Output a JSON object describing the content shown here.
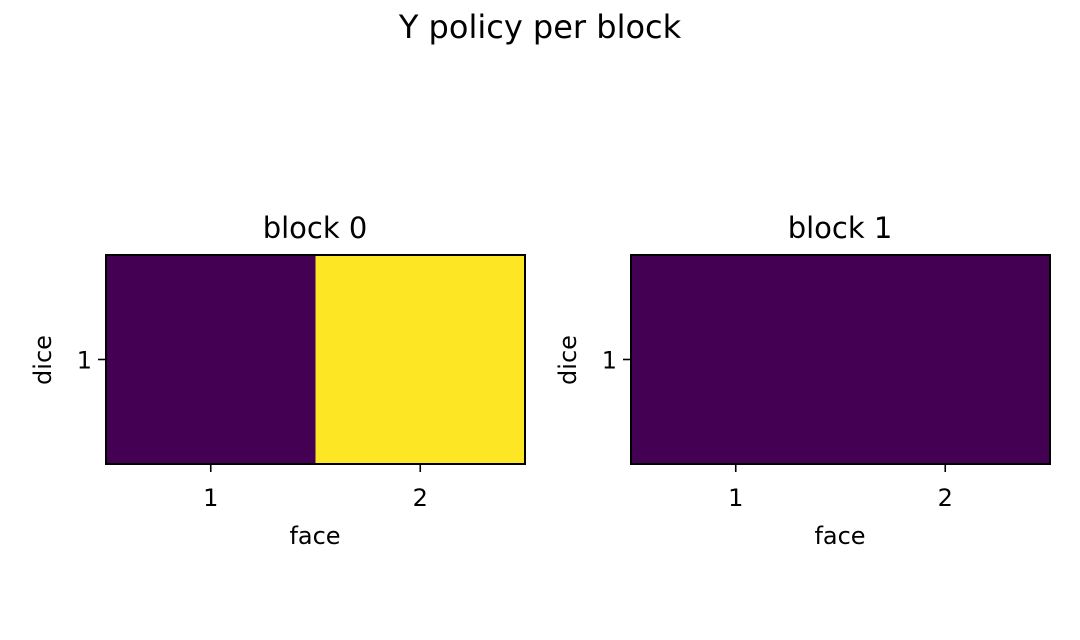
{
  "chart_data": {
    "type": "heatmap",
    "title": "Y policy per block",
    "colormap": "viridis",
    "color_low": "#440154",
    "color_high": "#fde725",
    "vmin": 0,
    "vmax": 1,
    "panels": [
      {
        "title": "block 0",
        "xlabel": "face",
        "ylabel": "dice",
        "x_ticks": [
          "1",
          "2"
        ],
        "y_ticks": [
          "1"
        ],
        "values": [
          [
            0,
            1
          ]
        ]
      },
      {
        "title": "block 1",
        "xlabel": "face",
        "ylabel": "dice",
        "x_ticks": [
          "1",
          "2"
        ],
        "y_ticks": [
          "1"
        ],
        "values": [
          [
            0,
            0
          ]
        ]
      }
    ]
  }
}
